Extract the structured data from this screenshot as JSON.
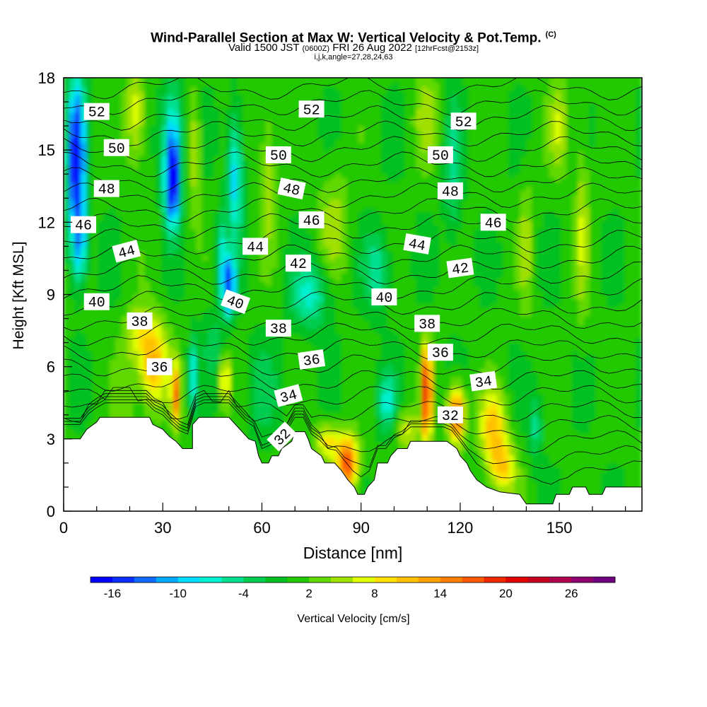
{
  "title": "Wind-Parallel Section at Max W: Vertical Velocity & Pot.Temp.",
  "title_copyright": "(C)",
  "subtitle_a": "Valid 1500 JST",
  "subtitle_b": "(0600Z)",
  "subtitle_c": "FRI 26 Aug 2022",
  "subtitle_d": "[12hrFcst@2153z]",
  "subtitle2": "i,j,k,angle=27,28,24,63",
  "chart_data": {
    "type": "heatmap",
    "xlabel": "Distance [nm]",
    "ylabel": "Height [Kft MSL]",
    "xlim": [
      0,
      175
    ],
    "ylim": [
      0,
      18
    ],
    "xticks": [
      0,
      30,
      60,
      90,
      120,
      150
    ],
    "yticks": [
      0,
      3,
      6,
      9,
      12,
      15,
      18
    ],
    "colorbar": {
      "label": "Vertical Velocity [cm/s]",
      "ticks": [
        -16,
        -10,
        -4,
        2,
        8,
        14,
        20,
        26
      ],
      "colors": [
        "#0000ff",
        "#0a2eff",
        "#0f6bff",
        "#00a8ff",
        "#00dcff",
        "#00f0d0",
        "#00e090",
        "#00cc50",
        "#00c020",
        "#20c800",
        "#60d800",
        "#a0e000",
        "#e0ff00",
        "#ffe000",
        "#ffc000",
        "#ffa000",
        "#ff8000",
        "#ff5a00",
        "#f02800",
        "#e00000",
        "#c80020",
        "#b00050",
        "#900070",
        "#700080"
      ]
    },
    "theta_contour_labels": [
      {
        "value": "52",
        "x": 10,
        "y": 16.6,
        "rot": 0
      },
      {
        "value": "52",
        "x": 75,
        "y": 16.7,
        "rot": 0
      },
      {
        "value": "52",
        "x": 121,
        "y": 16.2,
        "rot": 0
      },
      {
        "value": "50",
        "x": 16,
        "y": 15.1,
        "rot": 0
      },
      {
        "value": "50",
        "x": 65,
        "y": 14.8,
        "rot": 0
      },
      {
        "value": "50",
        "x": 114,
        "y": 14.8,
        "rot": 0
      },
      {
        "value": "48",
        "x": 13,
        "y": 13.4,
        "rot": 0
      },
      {
        "value": "48",
        "x": 69,
        "y": 13.4,
        "rot": 12
      },
      {
        "value": "48",
        "x": 117,
        "y": 13.3,
        "rot": 0
      },
      {
        "value": "46",
        "x": 6,
        "y": 11.9,
        "rot": 0
      },
      {
        "value": "46",
        "x": 75,
        "y": 12.1,
        "rot": 0
      },
      {
        "value": "46",
        "x": 130,
        "y": 12.0,
        "rot": 0
      },
      {
        "value": "44",
        "x": 19,
        "y": 10.8,
        "rot": -15
      },
      {
        "value": "44",
        "x": 58,
        "y": 11.0,
        "rot": 0
      },
      {
        "value": "44",
        "x": 107,
        "y": 11.1,
        "rot": 10
      },
      {
        "value": "42",
        "x": 71,
        "y": 10.3,
        "rot": 0
      },
      {
        "value": "42",
        "x": 120,
        "y": 10.1,
        "rot": -8
      },
      {
        "value": "40",
        "x": 10,
        "y": 8.7,
        "rot": 0
      },
      {
        "value": "40",
        "x": 52,
        "y": 8.7,
        "rot": 20
      },
      {
        "value": "40",
        "x": 97,
        "y": 8.9,
        "rot": 0
      },
      {
        "value": "38",
        "x": 23,
        "y": 7.9,
        "rot": 0
      },
      {
        "value": "38",
        "x": 65,
        "y": 7.6,
        "rot": 0
      },
      {
        "value": "38",
        "x": 110,
        "y": 7.8,
        "rot": 0
      },
      {
        "value": "36",
        "x": 29,
        "y": 6.0,
        "rot": 0
      },
      {
        "value": "36",
        "x": 75,
        "y": 6.3,
        "rot": -8
      },
      {
        "value": "36",
        "x": 114,
        "y": 6.6,
        "rot": 0
      },
      {
        "value": "34",
        "x": 68,
        "y": 4.8,
        "rot": -15
      },
      {
        "value": "34",
        "x": 127,
        "y": 5.4,
        "rot": -8
      },
      {
        "value": "32",
        "x": 66,
        "y": 3.1,
        "rot": -45
      },
      {
        "value": "32",
        "x": 117,
        "y": 4.0,
        "rot": 0
      }
    ]
  }
}
